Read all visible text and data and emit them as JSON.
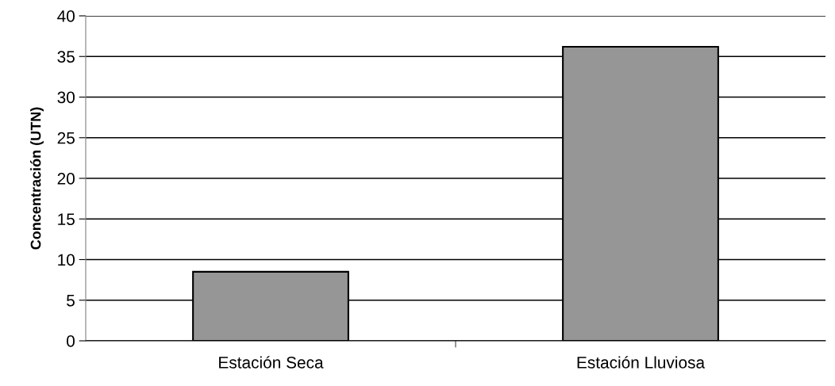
{
  "chart_data": {
    "type": "bar",
    "ylabel": "Concentración (UTN)",
    "categories": [
      "Estación Seca",
      "Estación Lluviosa"
    ],
    "values": [
      8.5,
      36.2
    ],
    "color": "#969696",
    "ylim": [
      0,
      40
    ],
    "yticks": [
      0,
      5,
      10,
      15,
      20,
      25,
      30,
      35,
      40
    ],
    "grid": "y"
  }
}
